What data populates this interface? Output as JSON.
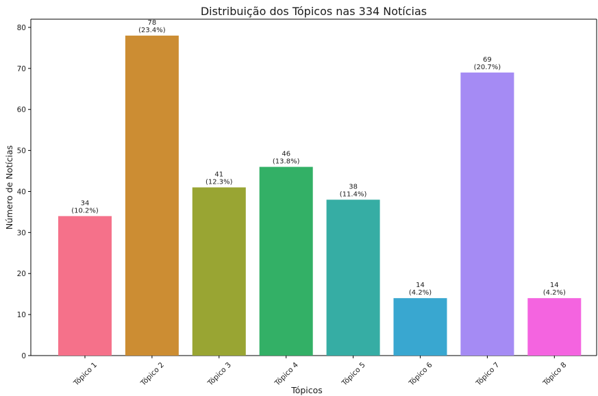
{
  "chart_data": {
    "type": "bar",
    "title": "Distribuição dos Tópicos nas 334 Notícias",
    "xlabel": "Tópicos",
    "ylabel": "Número de Notícias",
    "ylim": [
      0,
      82
    ],
    "yticks": [
      0,
      10,
      20,
      30,
      40,
      50,
      60,
      70,
      80
    ],
    "grid": false,
    "categories": [
      "Tópico 1",
      "Tópico 2",
      "Tópico 3",
      "Tópico 4",
      "Tópico 5",
      "Tópico 6",
      "Tópico 7",
      "Tópico 8"
    ],
    "values": [
      34,
      78,
      41,
      46,
      38,
      14,
      69,
      14
    ],
    "percent_labels": [
      "(10.2%)",
      "(23.4%)",
      "(12.3%)",
      "(13.8%)",
      "(11.4%)",
      "(4.2%)",
      "(20.7%)",
      "(4.2%)"
    ],
    "colors": [
      "#f5718a",
      "#cc8d33",
      "#99a533",
      "#33b066",
      "#36ada4",
      "#39a7d0",
      "#a58bf4",
      "#f464e0"
    ]
  }
}
